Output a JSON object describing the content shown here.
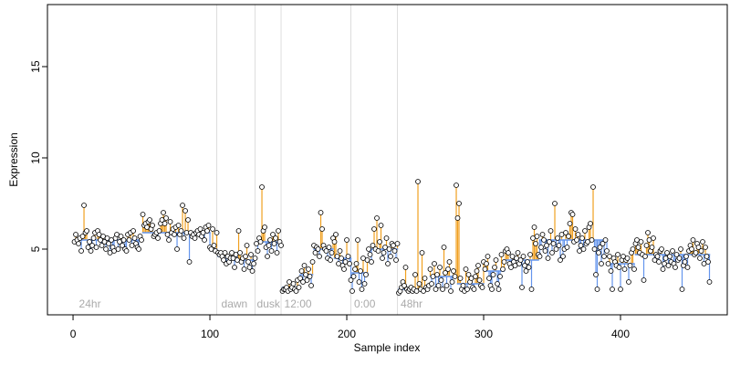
{
  "chart_data": {
    "type": "scatter-stem",
    "x_label": "Sample index",
    "y_label": "Expression",
    "xlim": [
      -18.7,
      478
    ],
    "ylim": [
      1.4,
      18.4
    ],
    "xticks": [
      0,
      100,
      200,
      300,
      400
    ],
    "yticks": [
      5,
      10,
      15
    ],
    "above_color": "#f0a020",
    "below_color": "#6495ed",
    "fit_color": "#6495ed",
    "vline_color": "#dddddd",
    "vlines": [
      105,
      133,
      152,
      203,
      237
    ],
    "region_labels": [
      {
        "x": 3,
        "label": "24hr"
      },
      {
        "x": 107,
        "label": "dawn"
      },
      {
        "x": 133,
        "label": "dusk"
      },
      {
        "x": 153,
        "label": "12:00"
      },
      {
        "x": 204,
        "label": "0:00"
      },
      {
        "x": 238,
        "label": "48hr"
      }
    ],
    "fit_segments": [
      {
        "start": 0.5,
        "end": 50.5,
        "value": 5.5
      },
      {
        "start": 50.5,
        "end": 100.5,
        "value": 5.9
      },
      {
        "start": 100.5,
        "end": 105.5,
        "value": 5.0
      },
      {
        "start": 105.5,
        "end": 120.5,
        "value": 4.6
      },
      {
        "start": 120.5,
        "end": 133.5,
        "value": 4.4
      },
      {
        "start": 133.5,
        "end": 152.5,
        "value": 5.4
      },
      {
        "start": 152.5,
        "end": 165.5,
        "value": 2.9
      },
      {
        "start": 165.5,
        "end": 175.5,
        "value": 3.6
      },
      {
        "start": 175.5,
        "end": 190.5,
        "value": 5.0
      },
      {
        "start": 190.5,
        "end": 203.5,
        "value": 4.5
      },
      {
        "start": 203.5,
        "end": 215.5,
        "value": 3.7
      },
      {
        "start": 215.5,
        "end": 237.5,
        "value": 5.0
      },
      {
        "start": 237.5,
        "end": 260.5,
        "value": 2.8
      },
      {
        "start": 260.5,
        "end": 280.5,
        "value": 3.5
      },
      {
        "start": 280.5,
        "end": 300.5,
        "value": 3.1
      },
      {
        "start": 300.5,
        "end": 315.5,
        "value": 3.8
      },
      {
        "start": 315.5,
        "end": 340.5,
        "value": 4.4
      },
      {
        "start": 340.5,
        "end": 390.5,
        "value": 5.5
      },
      {
        "start": 390.5,
        "end": 410.5,
        "value": 4.2
      },
      {
        "start": 410.5,
        "end": 440.5,
        "value": 4.7
      },
      {
        "start": 440.5,
        "end": 465.5,
        "value": 4.7
      }
    ],
    "x": [
      1,
      2,
      3,
      4,
      5,
      6,
      7,
      8,
      9,
      10,
      11,
      12,
      13,
      14,
      15,
      16,
      17,
      18,
      19,
      20,
      21,
      22,
      23,
      24,
      25,
      26,
      27,
      28,
      29,
      30,
      31,
      32,
      33,
      34,
      35,
      36,
      37,
      38,
      39,
      40,
      41,
      42,
      43,
      44,
      45,
      46,
      47,
      48,
      49,
      50,
      51,
      52,
      53,
      54,
      55,
      56,
      57,
      58,
      59,
      60,
      61,
      62,
      63,
      64,
      65,
      66,
      67,
      68,
      69,
      70,
      71,
      72,
      73,
      74,
      75,
      76,
      77,
      78,
      79,
      80,
      81,
      82,
      83,
      84,
      85,
      86,
      87,
      88,
      89,
      90,
      91,
      92,
      93,
      94,
      95,
      96,
      97,
      98,
      99,
      100,
      101,
      102,
      103,
      104,
      105,
      106,
      107,
      108,
      109,
      110,
      111,
      112,
      113,
      114,
      115,
      116,
      117,
      118,
      119,
      120,
      121,
      122,
      123,
      124,
      125,
      126,
      127,
      128,
      129,
      130,
      131,
      132,
      133,
      134,
      135,
      136,
      137,
      138,
      139,
      140,
      141,
      142,
      143,
      144,
      145,
      146,
      147,
      148,
      149,
      150,
      151,
      152,
      153,
      154,
      155,
      156,
      157,
      158,
      159,
      160,
      161,
      162,
      163,
      164,
      165,
      166,
      167,
      168,
      169,
      170,
      171,
      172,
      173,
      174,
      175,
      176,
      177,
      178,
      179,
      180,
      181,
      182,
      183,
      184,
      185,
      186,
      187,
      188,
      189,
      190,
      191,
      192,
      193,
      194,
      195,
      196,
      197,
      198,
      199,
      200,
      201,
      202,
      203,
      204,
      205,
      206,
      207,
      208,
      209,
      210,
      211,
      212,
      213,
      214,
      215,
      216,
      217,
      218,
      219,
      220,
      221,
      222,
      223,
      224,
      225,
      226,
      227,
      228,
      229,
      230,
      231,
      232,
      233,
      234,
      235,
      236,
      237,
      238,
      239,
      240,
      241,
      242,
      243,
      244,
      245,
      246,
      247,
      248,
      249,
      250,
      251,
      252,
      253,
      254,
      255,
      256,
      257,
      258,
      259,
      260,
      261,
      262,
      263,
      264,
      265,
      266,
      267,
      268,
      269,
      270,
      271,
      272,
      273,
      274,
      275,
      276,
      277,
      278,
      279,
      280,
      281,
      282,
      283,
      284,
      285,
      286,
      287,
      288,
      289,
      290,
      291,
      292,
      293,
      294,
      295,
      296,
      297,
      298,
      299,
      300,
      301,
      302,
      303,
      304,
      305,
      306,
      307,
      308,
      309,
      310,
      311,
      312,
      313,
      314,
      315,
      316,
      317,
      318,
      319,
      320,
      321,
      322,
      323,
      324,
      325,
      326,
      327,
      328,
      329,
      330,
      331,
      332,
      333,
      334,
      335,
      336,
      337,
      338,
      339,
      340,
      341,
      342,
      343,
      344,
      345,
      346,
      347,
      348,
      349,
      350,
      351,
      352,
      353,
      354,
      355,
      356,
      357,
      358,
      359,
      360,
      361,
      362,
      363,
      364,
      365,
      366,
      367,
      368,
      369,
      370,
      371,
      372,
      373,
      374,
      375,
      376,
      377,
      378,
      379,
      380,
      381,
      382,
      383,
      384,
      385,
      386,
      387,
      388,
      389,
      390,
      391,
      392,
      393,
      394,
      395,
      396,
      397,
      398,
      399,
      400,
      401,
      402,
      403,
      404,
      405,
      406,
      407,
      408,
      409,
      410,
      411,
      412,
      413,
      414,
      415,
      416,
      417,
      418,
      419,
      420,
      421,
      422,
      423,
      424,
      425,
      426,
      427,
      428,
      429,
      430,
      431,
      432,
      433,
      434,
      435,
      436,
      437,
      438,
      439,
      440,
      441,
      442,
      443,
      444,
      445,
      446,
      447,
      448,
      449,
      450,
      451,
      452,
      453,
      454,
      455,
      456,
      457,
      458,
      459,
      460,
      461,
      462,
      463,
      464,
      465
    ],
    "values": [
      5.4,
      5.8,
      5.5,
      5.3,
      5.6,
      4.9,
      5.7,
      7.4,
      5.9,
      6.0,
      5.1,
      5.4,
      4.9,
      5.2,
      5.6,
      5.9,
      5.1,
      6.0,
      5.8,
      5.5,
      5.2,
      5.7,
      5.4,
      5.0,
      5.6,
      5.3,
      4.8,
      5.5,
      5.1,
      4.9,
      5.6,
      5.8,
      5.0,
      5.4,
      5.7,
      5.2,
      5.5,
      5.0,
      4.9,
      5.8,
      5.5,
      5.9,
      5.2,
      6.0,
      5.6,
      5.3,
      5.1,
      5.0,
      5.7,
      5.5,
      6.9,
      6.3,
      6.4,
      6.2,
      6.5,
      6.6,
      6.1,
      6.3,
      5.7,
      5.8,
      5.9,
      5.6,
      6.0,
      6.4,
      6.6,
      7.0,
      6.4,
      6.7,
      5.8,
      5.5,
      6.5,
      5.9,
      6.1,
      5.8,
      6.2,
      5.0,
      6.3,
      5.8,
      6.0,
      7.4,
      5.6,
      7.1,
      5.9,
      6.6,
      4.3,
      5.9,
      5.7,
      5.8,
      5.6,
      5.9,
      6.0,
      5.8,
      6.1,
      5.7,
      5.9,
      5.5,
      6.2,
      6.0,
      6.3,
      5.1,
      5.0,
      6.1,
      5.2,
      4.9,
      5.9,
      4.8,
      4.7,
      4.8,
      4.6,
      4.4,
      4.8,
      4.2,
      4.6,
      4.3,
      4.5,
      4.8,
      4.5,
      4.0,
      4.7,
      4.4,
      6.0,
      4.8,
      4.3,
      4.5,
      3.9,
      4.6,
      5.2,
      4.3,
      4.0,
      4.7,
      3.8,
      4.2,
      4.5,
      5.3,
      4.9,
      5.6,
      5.4,
      8.4,
      6.0,
      6.2,
      5.1,
      4.6,
      5.2,
      5.5,
      4.9,
      5.8,
      5.3,
      5.6,
      4.8,
      6.0,
      5.4,
      5.2,
      2.7,
      2.8,
      2.8,
      2.9,
      2.7,
      3.2,
      2.8,
      2.9,
      3.1,
      2.8,
      2.7,
      3.3,
      2.9,
      3.4,
      3.8,
      3.2,
      4.1,
      3.6,
      3.3,
      3.9,
      3.5,
      3.0,
      4.3,
      5.2,
      4.8,
      5.1,
      5.0,
      4.6,
      7.0,
      6.1,
      5.2,
      5.0,
      4.9,
      4.5,
      5.1,
      4.4,
      4.8,
      5.6,
      5.4,
      5.8,
      4.6,
      4.2,
      4.9,
      4.5,
      4.1,
      3.9,
      4.3,
      5.5,
      4.6,
      4.2,
      3.3,
      2.7,
      3.5,
      3.9,
      4.2,
      5.5,
      3.2,
      3.8,
      2.8,
      4.5,
      3.1,
      3.6,
      4.4,
      5.0,
      4.7,
      4.3,
      5.2,
      6.1,
      5.0,
      6.7,
      4.9,
      5.4,
      6.3,
      4.5,
      4.8,
      5.1,
      5.6,
      4.2,
      5.0,
      4.6,
      5.3,
      5.2,
      4.9,
      4.4,
      5.3,
      2.6,
      2.7,
      2.9,
      3.2,
      3.0,
      4.0,
      2.8,
      2.7,
      2.8,
      2.9,
      2.7,
      2.8,
      3.6,
      2.7,
      8.7,
      3.1,
      2.8,
      4.8,
      2.7,
      3.4,
      2.9,
      2.8,
      3.0,
      3.9,
      3.1,
      3.5,
      4.2,
      2.8,
      3.6,
      3.0,
      4.0,
      3.3,
      2.8,
      5.1,
      3.7,
      3.0,
      3.9,
      4.3,
      2.7,
      3.2,
      3.8,
      3.5,
      8.5,
      6.7,
      7.5,
      3.4,
      2.8,
      3.0,
      2.7,
      3.9,
      2.8,
      3.6,
      3.2,
      3.4,
      2.9,
      2.8,
      3.5,
      3.8,
      4.1,
      3.3,
      3.0,
      2.9,
      4.3,
      3.9,
      4.2,
      4.6,
      3.4,
      3.0,
      2.8,
      3.6,
      4.0,
      4.4,
      3.1,
      2.8,
      3.5,
      4.7,
      3.9,
      4.3,
      4.9,
      5.0,
      4.8,
      4.2,
      4.0,
      4.6,
      4.3,
      4.1,
      4.5,
      4.8,
      4.2,
      4.4,
      2.9,
      4.6,
      4.1,
      3.8,
      4.3,
      4.0,
      4.7,
      2.8,
      5.6,
      6.2,
      5.3,
      5.7,
      4.7,
      4.6,
      5.1,
      5.8,
      5.5,
      4.9,
      5.2,
      4.5,
      5.4,
      6.0,
      4.8,
      5.3,
      7.5,
      5.0,
      5.6,
      5.2,
      4.4,
      5.8,
      4.6,
      5.0,
      5.9,
      5.1,
      5.7,
      6.4,
      7.0,
      6.9,
      5.4,
      6.1,
      5.5,
      5.8,
      4.9,
      5.2,
      5.6,
      5.0,
      6.0,
      5.3,
      5.4,
      6.2,
      6.4,
      5.5,
      8.4,
      5.0,
      3.6,
      2.8,
      4.8,
      5.1,
      4.2,
      5.3,
      4.6,
      5.5,
      4.9,
      4.2,
      4.6,
      3.8,
      2.8,
      4.5,
      4.3,
      4.1,
      4.7,
      4.0,
      2.8,
      4.4,
      4.6,
      3.9,
      4.4,
      4.5,
      3.2,
      4.1,
      4.8,
      5.0,
      3.9,
      5.3,
      5.5,
      5.1,
      4.8,
      5.4,
      4.7,
      3.3,
      4.6,
      5.2,
      5.9,
      5.5,
      4.9,
      5.1,
      5.6,
      4.4,
      4.7,
      4.6,
      4.3,
      4.9,
      5.0,
      3.9,
      4.2,
      4.5,
      4.8,
      4.1,
      4.6,
      4.3,
      4.9,
      4.2,
      4.0,
      4.7,
      4.4,
      4.5,
      5.0,
      2.8,
      4.1,
      4.3,
      4.6,
      4.0,
      4.9,
      5.2,
      5.0,
      5.5,
      4.7,
      4.8,
      5.3,
      5.1,
      4.5,
      4.9,
      5.4,
      4.2,
      5.1,
      4.6,
      4.3,
      3.2
    ]
  }
}
